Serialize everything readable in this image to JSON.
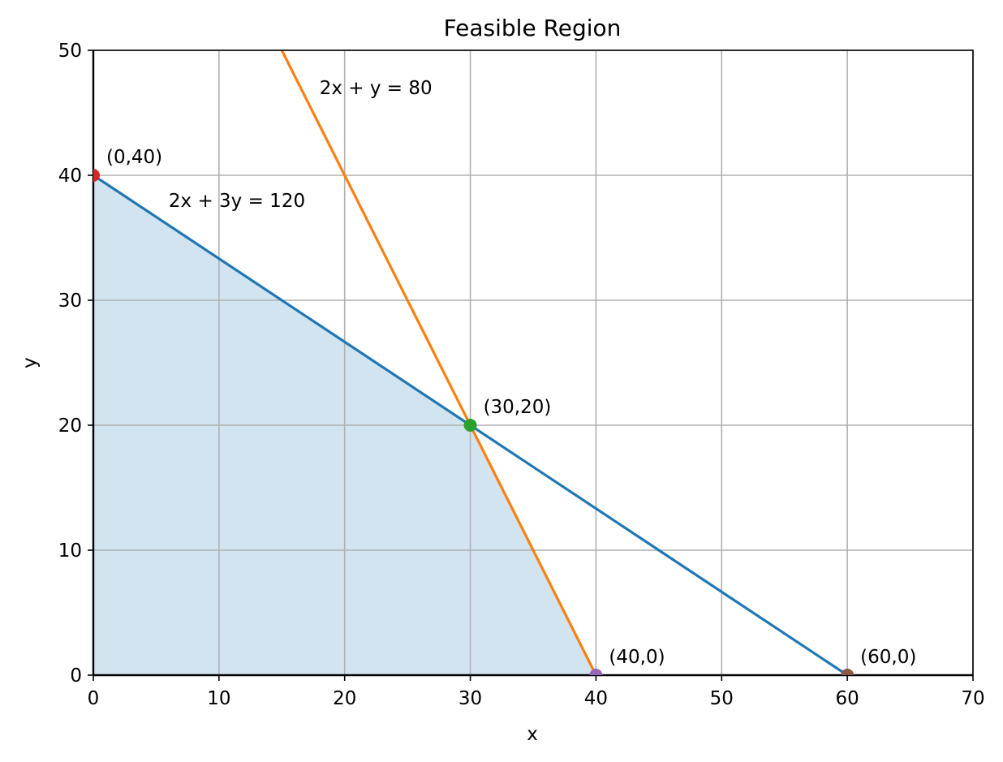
{
  "chart_data": {
    "type": "line",
    "title": "Feasible Region",
    "xlabel": "x",
    "ylabel": "y",
    "xlim": [
      0,
      70
    ],
    "ylim": [
      0,
      50
    ],
    "xticks": [
      0,
      10,
      20,
      30,
      40,
      50,
      60,
      70
    ],
    "yticks": [
      0,
      10,
      20,
      30,
      40,
      50
    ],
    "grid": true,
    "feasible_region": {
      "points": [
        [
          0,
          0
        ],
        [
          0,
          40
        ],
        [
          30,
          20
        ],
        [
          40,
          0
        ]
      ],
      "color": "#1f77b4",
      "opacity": 0.2
    },
    "series": [
      {
        "color": "#1f77b4",
        "x": [
          0,
          60
        ],
        "y": [
          40,
          0
        ]
      },
      {
        "color": "#ff7f0e",
        "x": [
          15,
          40
        ],
        "y": [
          50,
          0
        ]
      }
    ],
    "points": [
      {
        "x": 0,
        "y": 40,
        "label": "(0,40)",
        "color": "#d62728"
      },
      {
        "x": 30,
        "y": 20,
        "label": "(30,20)",
        "color": "#2ca02c"
      },
      {
        "x": 40,
        "y": 0,
        "label": "(40,0)",
        "color": "#9467bd"
      },
      {
        "x": 60,
        "y": 0,
        "label": "(60,0)",
        "color": "#8c564b"
      }
    ],
    "annotations": [
      {
        "text": "2x + 3y = 120",
        "x": 6,
        "y": 38
      },
      {
        "text": "2x + y = 80",
        "x": 18,
        "y": 47
      }
    ]
  }
}
